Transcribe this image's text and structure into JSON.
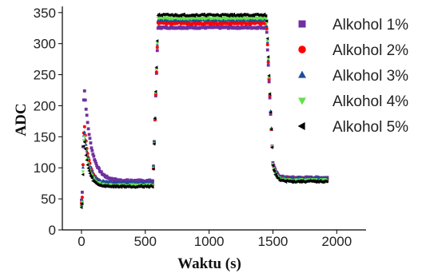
{
  "chart_data": {
    "type": "scatter",
    "title": "",
    "xlabel": "Waktu (s)",
    "ylabel": "ADC",
    "xlim": [
      -150,
      2230
    ],
    "ylim": [
      0,
      360
    ],
    "xticks": [
      0,
      500,
      1000,
      1500,
      2000
    ],
    "yticks": [
      0,
      50,
      100,
      150,
      200,
      250,
      300,
      350
    ],
    "legend_position": "top-right",
    "grid": false,
    "series": [
      {
        "name": "Alkohol 1%",
        "color": "#7030A0",
        "marker": "square",
        "baseline": 48,
        "peak": 235,
        "decay_floor": 79,
        "decay_tau": 55,
        "plateau": 326,
        "final": 84,
        "jump_start": 560,
        "jump_end": 600,
        "drop_start": 1450,
        "drop_end": 1500,
        "end": 1930
      },
      {
        "name": "Alkohol 2%",
        "color": "#FF0000",
        "marker": "circle",
        "baseline": 44,
        "peak": 175,
        "decay_floor": 74,
        "decay_tau": 40,
        "plateau": 333,
        "final": 82,
        "jump_start": 560,
        "jump_end": 600,
        "drop_start": 1450,
        "drop_end": 1500,
        "end": 1930
      },
      {
        "name": "Alkohol 3%",
        "color": "#1F4E9B",
        "marker": "triangle-up",
        "baseline": 40,
        "peak": 168,
        "decay_floor": 76,
        "decay_tau": 38,
        "plateau": 338,
        "final": 83,
        "jump_start": 560,
        "jump_end": 600,
        "drop_start": 1450,
        "drop_end": 1500,
        "end": 1930
      },
      {
        "name": "Alkohol 4%",
        "color": "#66E04A",
        "marker": "triangle-down",
        "baseline": 38,
        "peak": 160,
        "decay_floor": 72,
        "decay_tau": 36,
        "plateau": 341,
        "final": 80,
        "jump_start": 560,
        "jump_end": 600,
        "drop_start": 1450,
        "drop_end": 1500,
        "end": 1930
      },
      {
        "name": "Alkohol 5%",
        "color": "#000000",
        "marker": "triangle-left",
        "baseline": 36,
        "peak": 150,
        "decay_floor": 70,
        "decay_tau": 34,
        "plateau": 346,
        "final": 78,
        "jump_start": 560,
        "jump_end": 600,
        "drop_start": 1450,
        "drop_end": 1500,
        "end": 1930
      }
    ]
  }
}
